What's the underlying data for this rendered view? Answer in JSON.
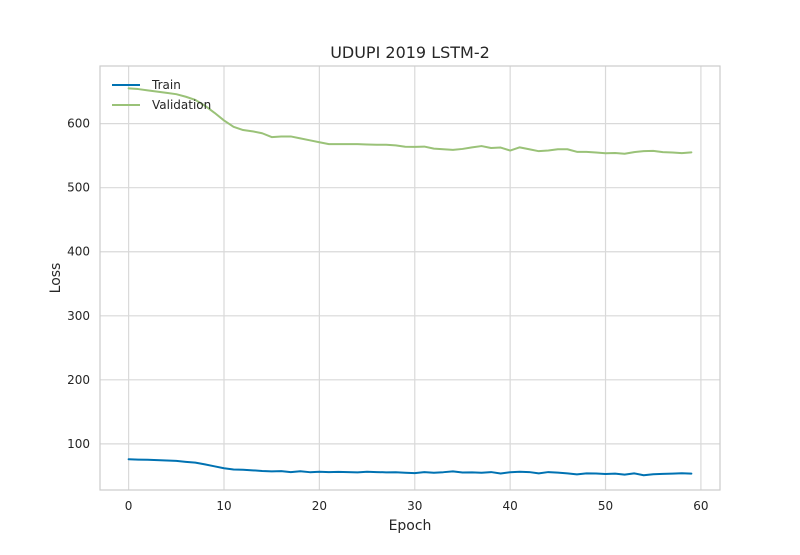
{
  "chart_data": {
    "type": "line",
    "title": "UDUPI 2019 LSTM-2",
    "xlabel": "Epoch",
    "ylabel": "Loss",
    "xlim": [
      -3,
      62
    ],
    "ylim": [
      28,
      690
    ],
    "xticks": [
      0,
      10,
      20,
      30,
      40,
      50,
      60
    ],
    "yticks": [
      100,
      200,
      300,
      400,
      500,
      600
    ],
    "grid": true,
    "legend_position": "top-left",
    "x": [
      0,
      1,
      2,
      3,
      4,
      5,
      6,
      7,
      8,
      9,
      10,
      11,
      12,
      13,
      14,
      15,
      16,
      17,
      18,
      19,
      20,
      21,
      22,
      23,
      24,
      25,
      26,
      27,
      28,
      29,
      30,
      31,
      32,
      33,
      34,
      35,
      36,
      37,
      38,
      39,
      40,
      41,
      42,
      43,
      44,
      45,
      46,
      47,
      48,
      49,
      50,
      51,
      52,
      53,
      54,
      55,
      56,
      57,
      58,
      59
    ],
    "series": [
      {
        "name": "Train",
        "color": "#0072b2",
        "values": [
          76,
          75.5,
          75.2,
          74.6,
          74,
          73.4,
          72,
          70.7,
          68,
          65,
          62,
          60,
          59.6,
          58.7,
          57.7,
          57.1,
          57.5,
          56,
          57.2,
          55.8,
          56.5,
          56,
          56.3,
          56,
          55.5,
          56.5,
          56,
          55.6,
          55.8,
          55,
          54.4,
          56,
          55,
          55.8,
          57,
          55.4,
          55.5,
          55,
          56,
          53.7,
          55.7,
          56.4,
          56,
          53.9,
          56,
          55.1,
          54,
          52.4,
          54,
          53.8,
          53,
          53.6,
          52,
          54,
          51,
          52.6,
          53.2,
          53.6,
          54.1,
          53.6
        ]
      },
      {
        "name": "Validation",
        "color": "#9ac278",
        "values": [
          655,
          654,
          652,
          650,
          648,
          646,
          642,
          637,
          628,
          617,
          605,
          595,
          590,
          588,
          585,
          579,
          580,
          580,
          577,
          574,
          571,
          568,
          568,
          568,
          568,
          567.5,
          567,
          567,
          566,
          564,
          563.7,
          564.2,
          561,
          560,
          559,
          560.5,
          563,
          565,
          562,
          562.7,
          558,
          563,
          560,
          557,
          558,
          560,
          560,
          556,
          556,
          555,
          553.7,
          554.1,
          553,
          555.6,
          557,
          557.5,
          555.5,
          555,
          554,
          555.2
        ]
      }
    ]
  }
}
